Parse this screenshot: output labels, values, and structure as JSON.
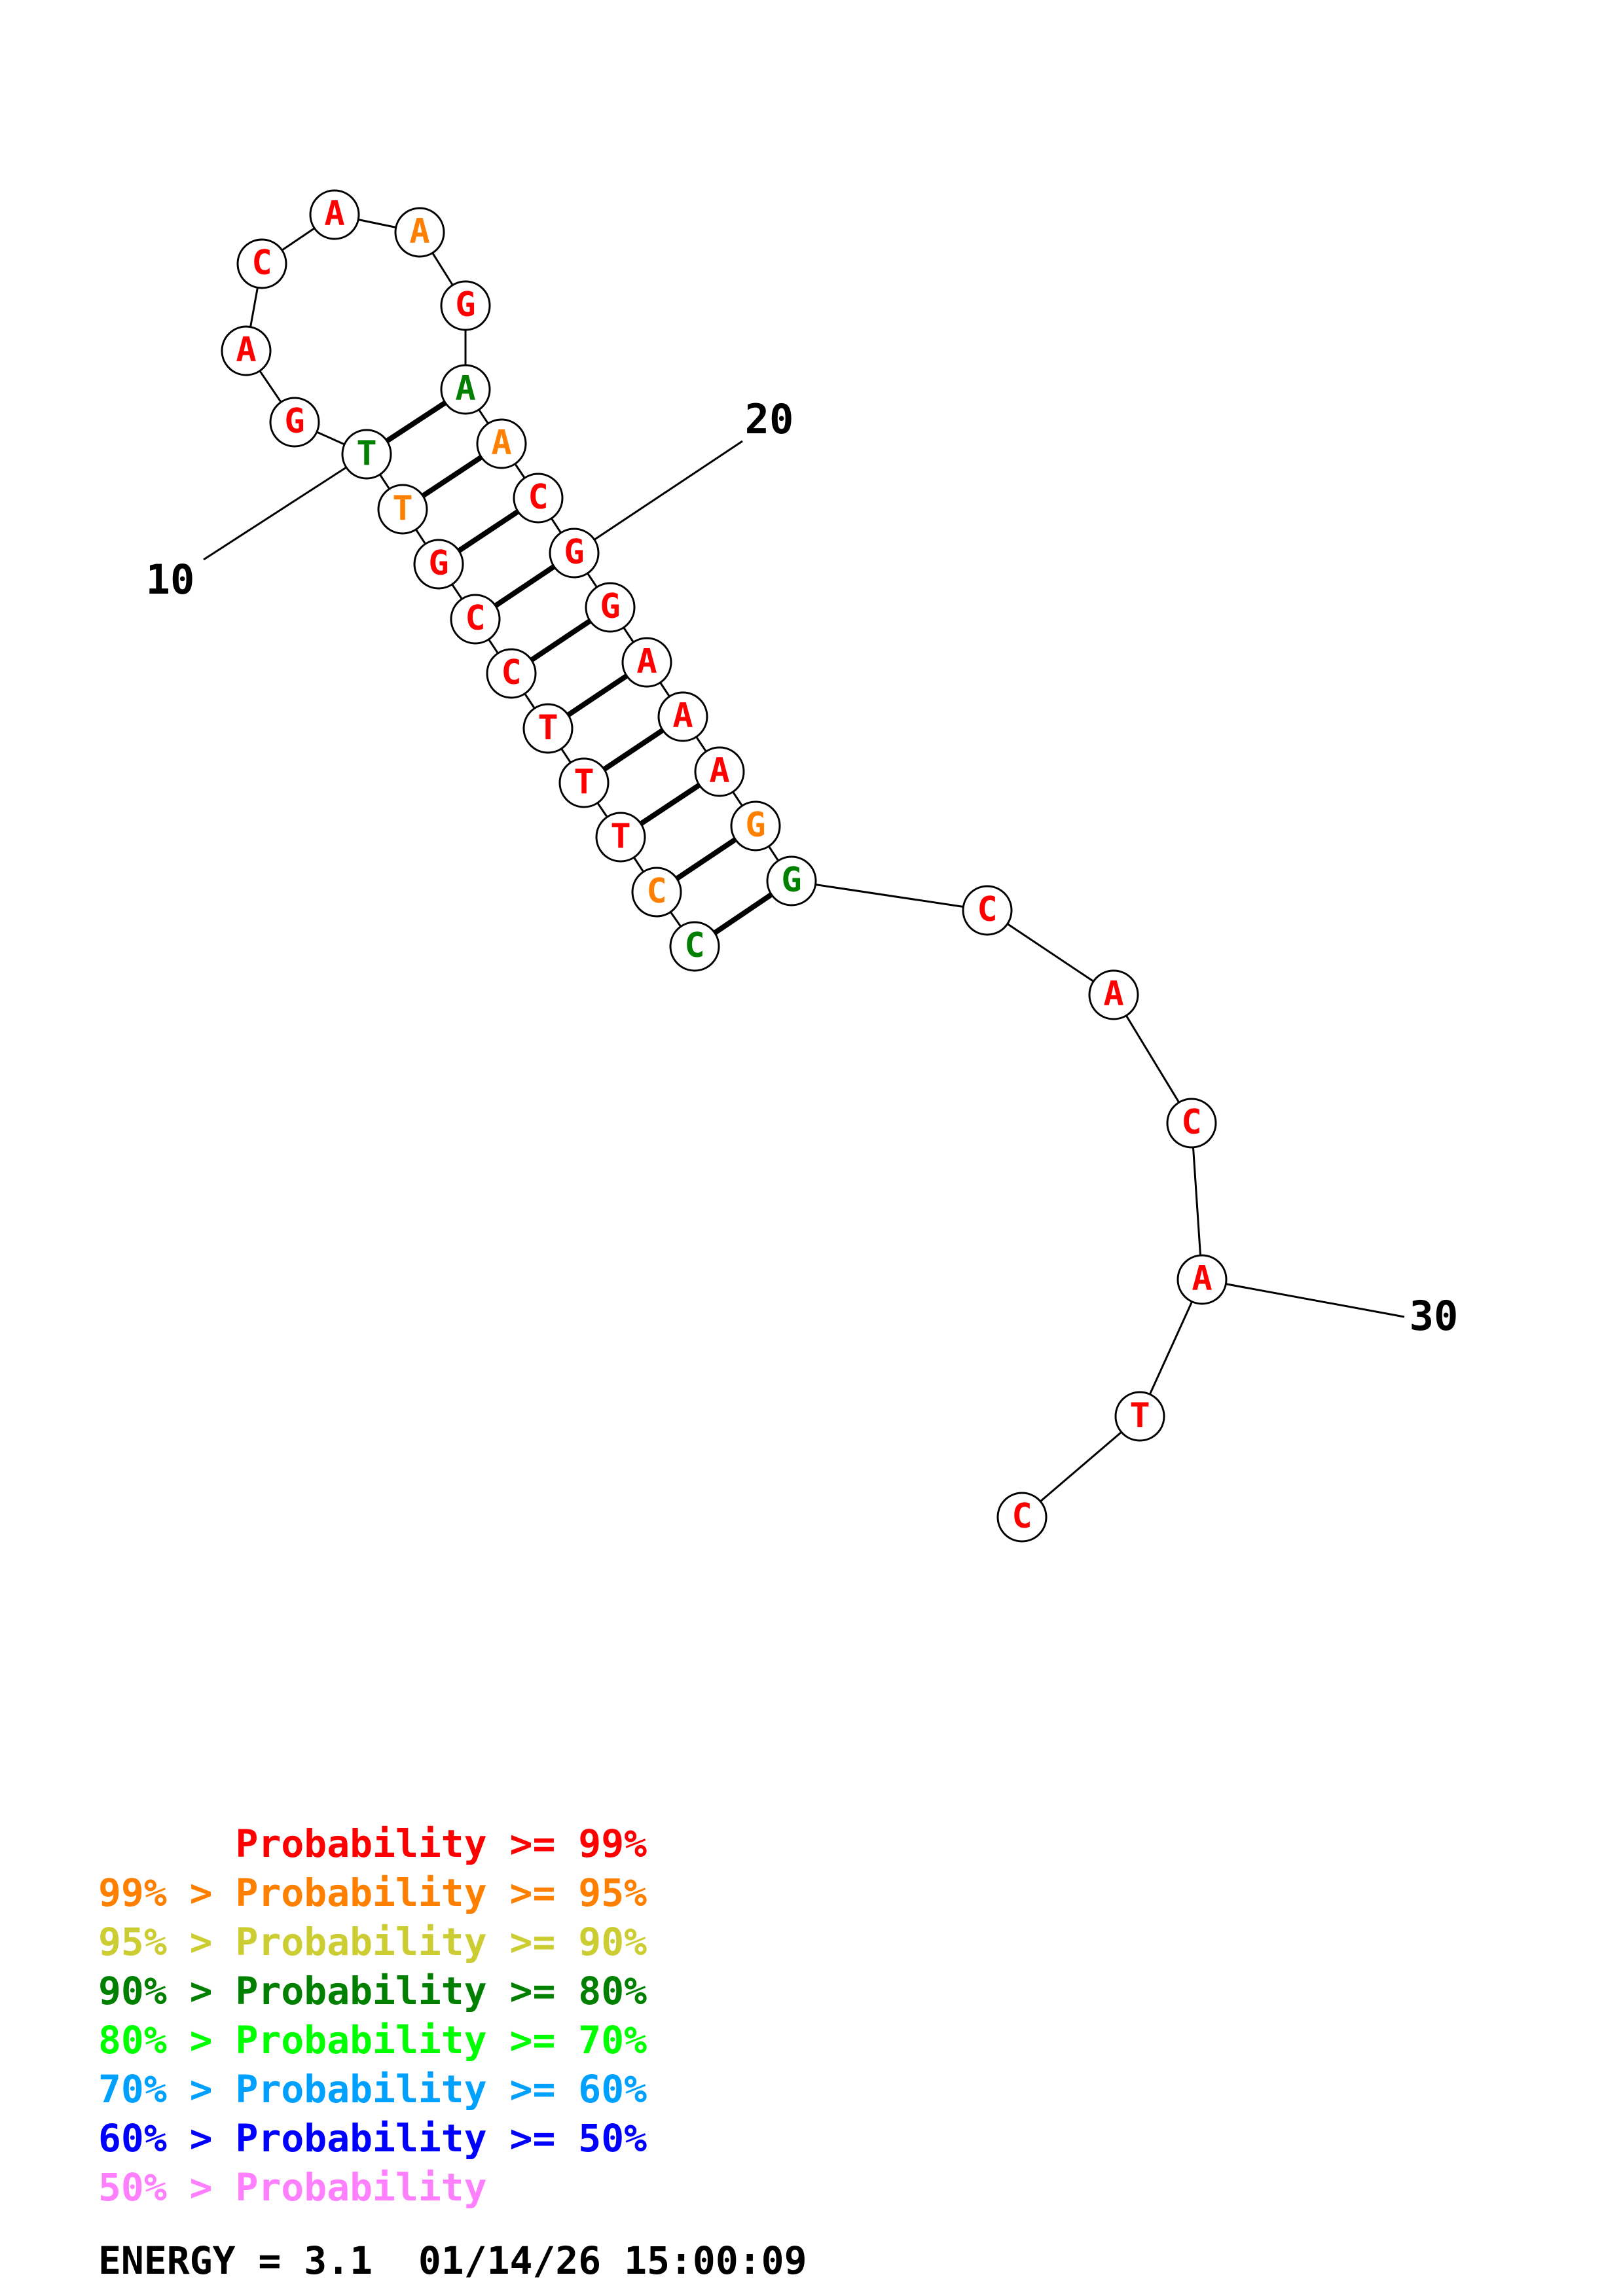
{
  "colors": {
    "p99": "#ff0000",
    "p95": "#ff8000",
    "p90": "#cccc33",
    "p80": "#007f00",
    "p70": "#00ff00",
    "p60": "#00a0ff",
    "p50": "#0000ff",
    "plow": "#ff80ff"
  },
  "structure": {
    "nucleotides": [
      {
        "i": 1,
        "base": "C",
        "c": "p80"
      },
      {
        "i": 2,
        "base": "C",
        "c": "p95"
      },
      {
        "i": 3,
        "base": "T",
        "c": "p99"
      },
      {
        "i": 4,
        "base": "T",
        "c": "p99"
      },
      {
        "i": 5,
        "base": "T",
        "c": "p99"
      },
      {
        "i": 6,
        "base": "C",
        "c": "p99"
      },
      {
        "i": 7,
        "base": "C",
        "c": "p99"
      },
      {
        "i": 8,
        "base": "G",
        "c": "p99"
      },
      {
        "i": 9,
        "base": "T",
        "c": "p95"
      },
      {
        "i": 10,
        "base": "T",
        "c": "p80"
      },
      {
        "i": 11,
        "base": "G",
        "c": "p99"
      },
      {
        "i": 12,
        "base": "A",
        "c": "p99"
      },
      {
        "i": 13,
        "base": "C",
        "c": "p99"
      },
      {
        "i": 14,
        "base": "A",
        "c": "p99"
      },
      {
        "i": 15,
        "base": "A",
        "c": "p95"
      },
      {
        "i": 16,
        "base": "G",
        "c": "p99"
      },
      {
        "i": 17,
        "base": "A",
        "c": "p80"
      },
      {
        "i": 18,
        "base": "A",
        "c": "p95"
      },
      {
        "i": 19,
        "base": "C",
        "c": "p99"
      },
      {
        "i": 20,
        "base": "G",
        "c": "p99"
      },
      {
        "i": 21,
        "base": "G",
        "c": "p99"
      },
      {
        "i": 22,
        "base": "A",
        "c": "p99"
      },
      {
        "i": 23,
        "base": "A",
        "c": "p99"
      },
      {
        "i": 24,
        "base": "A",
        "c": "p99"
      },
      {
        "i": 25,
        "base": "G",
        "c": "p95"
      },
      {
        "i": 26,
        "base": "G",
        "c": "p80"
      },
      {
        "i": 27,
        "base": "C",
        "c": "p99"
      },
      {
        "i": 28,
        "base": "A",
        "c": "p99"
      },
      {
        "i": 29,
        "base": "C",
        "c": "p99"
      },
      {
        "i": 30,
        "base": "A",
        "c": "p99"
      },
      {
        "i": 31,
        "base": "T",
        "c": "p99"
      },
      {
        "i": 32,
        "base": "C",
        "c": "p99"
      }
    ],
    "pairs": [
      [
        1,
        26
      ],
      [
        2,
        25
      ],
      [
        3,
        24
      ],
      [
        4,
        23
      ],
      [
        5,
        22
      ],
      [
        6,
        21
      ],
      [
        7,
        20
      ],
      [
        8,
        19
      ],
      [
        9,
        18
      ],
      [
        10,
        17
      ]
    ],
    "ticks": [
      {
        "label": "10",
        "at": 10
      },
      {
        "label": "20",
        "at": 20
      },
      {
        "label": "30",
        "at": 30
      }
    ]
  },
  "legend": {
    "lines": [
      {
        "prefix": "",
        "text": "Probability >= 99%",
        "c": "p99"
      },
      {
        "prefix": "99% > ",
        "text": "Probability >= 95%",
        "c": "p95"
      },
      {
        "prefix": "95% > ",
        "text": "Probability >= 90%",
        "c": "p90"
      },
      {
        "prefix": "90% > ",
        "text": "Probability >= 80%",
        "c": "p80"
      },
      {
        "prefix": "80% > ",
        "text": "Probability >= 70%",
        "c": "p70"
      },
      {
        "prefix": "70% > ",
        "text": "Probability >= 60%",
        "c": "p60"
      },
      {
        "prefix": "60% > ",
        "text": "Probability >= 50%",
        "c": "p50"
      },
      {
        "prefix": "50% > ",
        "text": "Probability",
        "c": "plow"
      }
    ]
  },
  "footer": {
    "energy_label": "ENERGY = 3.1",
    "timestamp": "01/14/26 15:00:09"
  }
}
